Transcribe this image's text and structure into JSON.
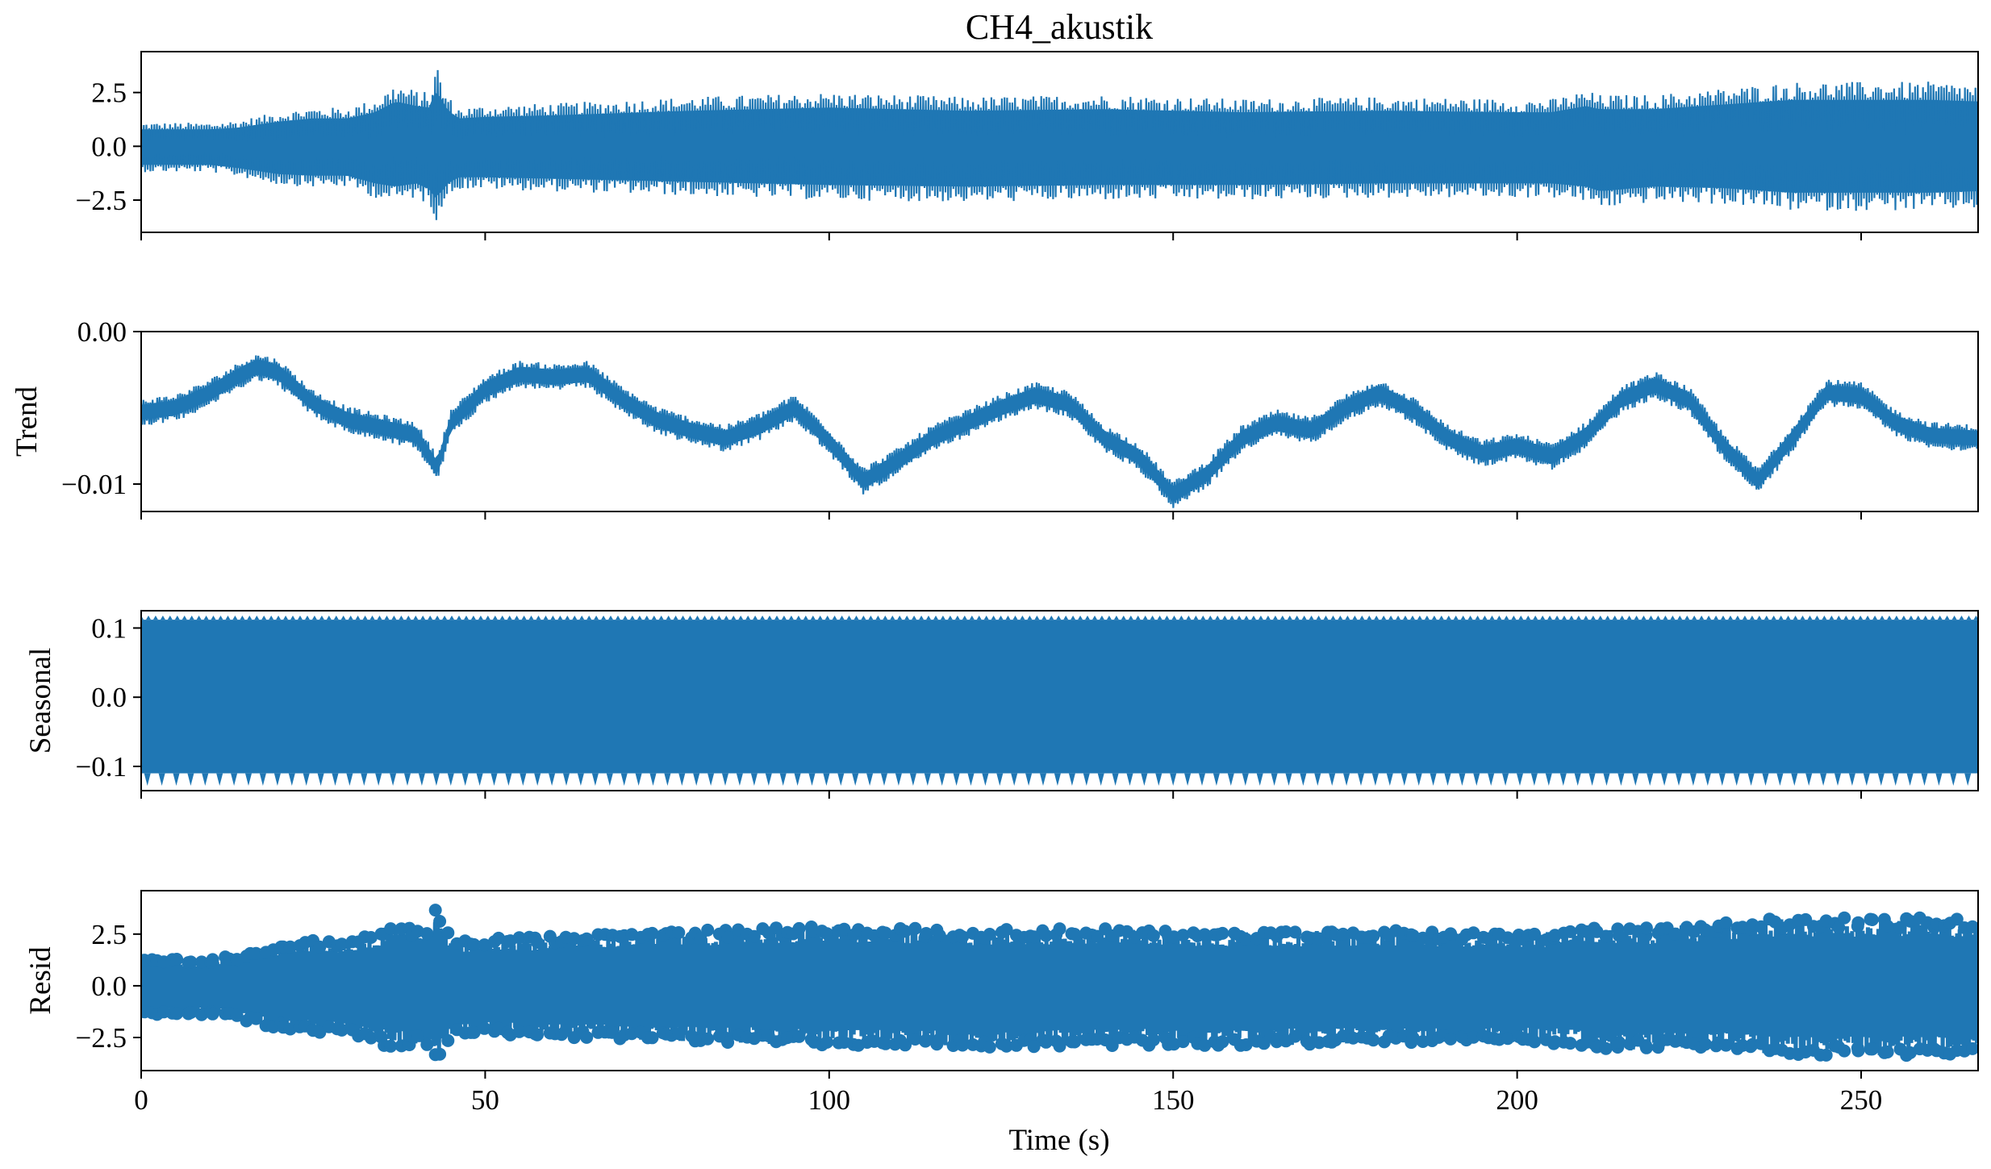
{
  "chart_data": {
    "type": "line",
    "title": "CH4_akustik",
    "xlabel": "Time (s)",
    "xlim": [
      0,
      267
    ],
    "x_ticks": [
      0,
      50,
      100,
      150,
      200,
      250
    ],
    "x_tick_labels": [
      "0",
      "50",
      "100",
      "150",
      "200",
      "250"
    ],
    "series_color": "#1f77b4",
    "grid": false,
    "panels": [
      {
        "name": "observed",
        "ylabel": "",
        "style": "line",
        "ylim": [
          -4.0,
          4.4
        ],
        "y_ticks": [
          2.5,
          0.0,
          -2.5
        ],
        "y_tick_labels": [
          "2.5",
          "0.0",
          "−2.5"
        ],
        "envelope": {
          "time": [
            0,
            5,
            10,
            14,
            20,
            25,
            30,
            34,
            37,
            40,
            42,
            43,
            44,
            46,
            50,
            60,
            80,
            100,
            120,
            140,
            160,
            180,
            200,
            205,
            210,
            212,
            220,
            230,
            240,
            250,
            260,
            267
          ],
          "upper": [
            1.1,
            1.1,
            1.1,
            1.2,
            1.6,
            1.8,
            1.8,
            2.2,
            2.9,
            2.6,
            2.5,
            3.9,
            2.6,
            1.8,
            1.9,
            2.0,
            2.3,
            2.5,
            2.3,
            2.4,
            2.2,
            2.3,
            2.2,
            2.2,
            2.6,
            2.4,
            2.4,
            2.7,
            3.0,
            3.0,
            3.0,
            2.9
          ],
          "lower": [
            -1.2,
            -1.2,
            -1.2,
            -1.4,
            -1.8,
            -1.9,
            -1.9,
            -2.4,
            -2.6,
            -2.4,
            -2.8,
            -3.5,
            -2.6,
            -2.0,
            -2.0,
            -2.1,
            -2.3,
            -2.5,
            -2.6,
            -2.5,
            -2.5,
            -2.4,
            -2.4,
            -2.4,
            -2.6,
            -2.9,
            -2.6,
            -2.7,
            -3.0,
            -3.0,
            -3.0,
            -2.9
          ]
        }
      },
      {
        "name": "trend",
        "ylabel": "Trend",
        "style": "line",
        "ylim": [
          -0.0118,
          0.0
        ],
        "y_ticks": [
          0.0,
          -0.01
        ],
        "y_tick_labels": [
          "0.00",
          "−0.01"
        ],
        "centerline": {
          "time": [
            0,
            5,
            10,
            15,
            17,
            20,
            25,
            30,
            35,
            40,
            43,
            45,
            50,
            55,
            60,
            65,
            70,
            75,
            80,
            85,
            90,
            95,
            100,
            105,
            110,
            115,
            120,
            125,
            130,
            135,
            140,
            145,
            150,
            155,
            160,
            165,
            170,
            175,
            180,
            185,
            190,
            195,
            200,
            205,
            210,
            215,
            220,
            225,
            230,
            235,
            240,
            245,
            250,
            255,
            260,
            267
          ],
          "value": [
            -0.0053,
            -0.005,
            -0.004,
            -0.0027,
            -0.0023,
            -0.0027,
            -0.0047,
            -0.0058,
            -0.0063,
            -0.0068,
            -0.009,
            -0.006,
            -0.0038,
            -0.0028,
            -0.003,
            -0.0028,
            -0.0045,
            -0.0058,
            -0.0065,
            -0.007,
            -0.0062,
            -0.005,
            -0.0072,
            -0.0098,
            -0.0085,
            -0.007,
            -0.006,
            -0.005,
            -0.0042,
            -0.0048,
            -0.007,
            -0.0082,
            -0.0107,
            -0.0093,
            -0.007,
            -0.006,
            -0.0065,
            -0.005,
            -0.004,
            -0.0052,
            -0.007,
            -0.008,
            -0.0075,
            -0.0082,
            -0.0068,
            -0.0045,
            -0.0035,
            -0.0045,
            -0.0075,
            -0.0098,
            -0.007,
            -0.004,
            -0.0042,
            -0.006,
            -0.0068,
            -0.007
          ]
        },
        "band_halfwidth": 0.0009
      },
      {
        "name": "seasonal",
        "ylabel": "Seasonal",
        "style": "line",
        "ylim": [
          -0.135,
          0.125
        ],
        "y_ticks": [
          0.1,
          0.0,
          -0.1
        ],
        "y_tick_labels": [
          "0.1",
          "0.0",
          "−0.1"
        ],
        "band": [
          -0.11,
          0.112
        ],
        "trough_spikes": -0.128,
        "spike_period": 2.1
      },
      {
        "name": "resid",
        "ylabel": "Resid",
        "style": "scatter",
        "ylim": [
          -4.1,
          4.6
        ],
        "y_ticks": [
          2.5,
          0.0,
          -2.5
        ],
        "y_tick_labels": [
          "2.5",
          "0.0",
          "−2.5"
        ],
        "envelope": {
          "time": [
            0,
            5,
            10,
            14,
            20,
            25,
            30,
            34,
            37,
            40,
            42,
            43,
            44,
            46,
            50,
            60,
            80,
            100,
            120,
            140,
            160,
            180,
            200,
            205,
            210,
            212,
            220,
            230,
            240,
            250,
            260,
            267
          ],
          "upper": [
            1.3,
            1.3,
            1.3,
            1.5,
            2.0,
            2.2,
            2.2,
            2.5,
            3.1,
            2.8,
            2.7,
            4.0,
            2.8,
            2.2,
            2.3,
            2.4,
            2.7,
            2.9,
            2.7,
            2.8,
            2.6,
            2.7,
            2.6,
            2.6,
            3.0,
            2.8,
            2.8,
            3.1,
            3.3,
            3.3,
            3.3,
            3.2
          ],
          "lower": [
            -1.4,
            -1.4,
            -1.4,
            -1.6,
            -2.1,
            -2.3,
            -2.3,
            -2.8,
            -3.1,
            -2.8,
            -3.2,
            -3.7,
            -3.0,
            -2.4,
            -2.4,
            -2.5,
            -2.7,
            -2.9,
            -3.0,
            -2.9,
            -2.9,
            -2.8,
            -2.8,
            -2.8,
            -3.0,
            -3.3,
            -3.0,
            -3.1,
            -3.4,
            -3.4,
            -3.4,
            -3.3
          ]
        }
      }
    ]
  }
}
